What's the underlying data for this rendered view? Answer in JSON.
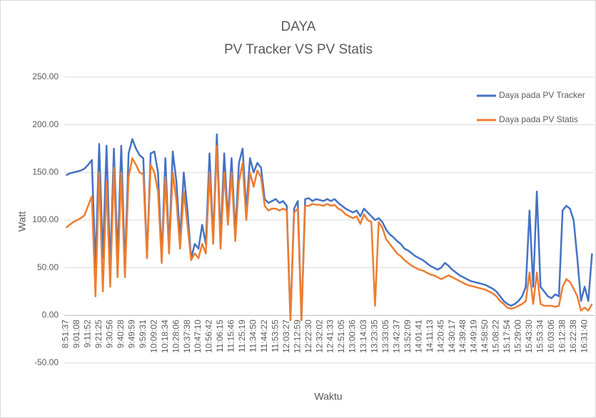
{
  "chart_data": {
    "type": "line",
    "title": "DAYA",
    "subtitle": "PV Tracker VS PV Statis",
    "y_label": "Watt",
    "x_label": "Waktu",
    "categories": [
      "8:51:37",
      null,
      null,
      "9:01:08",
      null,
      null,
      "9:11:52",
      null,
      null,
      "9:21:25",
      null,
      null,
      "9:30:56",
      null,
      null,
      "9:40:28",
      null,
      null,
      "9:49:59",
      null,
      null,
      "9:59:31",
      null,
      null,
      "10:09:02",
      null,
      null,
      "10:18:34",
      null,
      null,
      "10:28:06",
      null,
      null,
      "10:37:38",
      null,
      null,
      "10:47:10",
      null,
      null,
      "10:56:42",
      null,
      null,
      "11:06:15",
      null,
      null,
      "11:15:46",
      null,
      null,
      "11:25:19",
      null,
      null,
      "11:34:50",
      null,
      null,
      "11:44:22",
      null,
      null,
      "11:53:55",
      null,
      null,
      "12:03:27",
      null,
      null,
      "12:12:59",
      null,
      null,
      "12:22:30",
      null,
      null,
      "12:32:02",
      null,
      null,
      "12:41:33",
      null,
      null,
      "12:51:05",
      null,
      null,
      "13:00:36",
      null,
      null,
      "13:14:03",
      null,
      null,
      "13:23:35",
      null,
      null,
      "13:33:05",
      null,
      null,
      "13:42:37",
      null,
      null,
      "13:52:09",
      null,
      null,
      "14:01:41",
      null,
      null,
      "14:11:13",
      null,
      null,
      "14:20:45",
      null,
      null,
      "14:30:17",
      null,
      null,
      "14:39:48",
      null,
      null,
      "14:49:19",
      null,
      null,
      "14:58:50",
      null,
      null,
      "15:08:22",
      null,
      null,
      "15:17:54",
      null,
      null,
      "15:29:00",
      null,
      null,
      "15:43:30",
      null,
      null,
      "15:53:34",
      null,
      null,
      "16:03:06",
      null,
      null,
      "16:12:38",
      null,
      null,
      "16:22:38",
      null,
      null,
      "16:31:40",
      null,
      null
    ],
    "series": [
      {
        "name": "Daya pada PV Tracker",
        "color": "#4472c4",
        "values": [
          147,
          149,
          150,
          151,
          152,
          154,
          158,
          163,
          50,
          180,
          60,
          178,
          50,
          175,
          60,
          178,
          50,
          170,
          185,
          175,
          168,
          165,
          60,
          170,
          172,
          150,
          60,
          165,
          70,
          172,
          140,
          80,
          150,
          110,
          60,
          75,
          70,
          95,
          75,
          170,
          80,
          190,
          80,
          170,
          100,
          165,
          85,
          160,
          175,
          110,
          165,
          150,
          160,
          155,
          122,
          118,
          120,
          122,
          118,
          120,
          115,
          -5,
          112,
          120,
          -5,
          122,
          123,
          120,
          122,
          121,
          120,
          122,
          120,
          122,
          118,
          115,
          112,
          110,
          108,
          110,
          104,
          112,
          108,
          104,
          100,
          102,
          98,
          90,
          85,
          82,
          78,
          75,
          70,
          68,
          65,
          62,
          60,
          58,
          55,
          52,
          50,
          48,
          50,
          55,
          52,
          48,
          45,
          42,
          40,
          38,
          36,
          35,
          34,
          33,
          32,
          30,
          28,
          25,
          20,
          15,
          12,
          10,
          12,
          15,
          20,
          30,
          110,
          30,
          130,
          30,
          25,
          20,
          18,
          22,
          20,
          110,
          115,
          112,
          100,
          60,
          15,
          30,
          15,
          65
        ]
      },
      {
        "name": "Daya pada PV Statis",
        "color": "#ed7d31",
        "values": [
          92,
          95,
          98,
          100,
          102,
          105,
          115,
          125,
          20,
          150,
          25,
          140,
          30,
          155,
          40,
          150,
          40,
          145,
          165,
          158,
          150,
          148,
          60,
          158,
          150,
          130,
          55,
          145,
          65,
          150,
          120,
          70,
          130,
          95,
          58,
          65,
          60,
          75,
          65,
          150,
          75,
          178,
          70,
          150,
          95,
          150,
          78,
          140,
          160,
          100,
          150,
          135,
          152,
          145,
          115,
          110,
          112,
          112,
          110,
          112,
          110,
          -5,
          108,
          112,
          -5,
          115,
          115,
          117,
          116,
          116,
          115,
          117,
          115,
          116,
          112,
          110,
          106,
          104,
          102,
          104,
          96,
          106,
          100,
          98,
          10,
          98,
          92,
          80,
          75,
          70,
          65,
          62,
          58,
          55,
          52,
          50,
          48,
          47,
          45,
          43,
          42,
          40,
          38,
          40,
          42,
          40,
          38,
          36,
          34,
          32,
          31,
          30,
          29,
          28,
          27,
          25,
          23,
          20,
          15,
          12,
          8,
          7,
          8,
          10,
          12,
          15,
          45,
          12,
          45,
          12,
          10,
          10,
          10,
          9,
          10,
          30,
          38,
          35,
          28,
          20,
          5,
          8,
          5,
          12
        ]
      }
    ],
    "ylim": [
      -50,
      250
    ],
    "yticks": [
      {
        "value": -50,
        "label": "-50.00"
      },
      {
        "value": 0,
        "label": "0.00"
      },
      {
        "value": 50,
        "label": "50.00"
      },
      {
        "value": 100,
        "label": "100.00"
      },
      {
        "value": 150,
        "label": "150.00"
      },
      {
        "value": 200,
        "label": "200.00"
      },
      {
        "value": 250,
        "label": "250.00"
      }
    ],
    "grid": true,
    "legend": "upper right"
  }
}
